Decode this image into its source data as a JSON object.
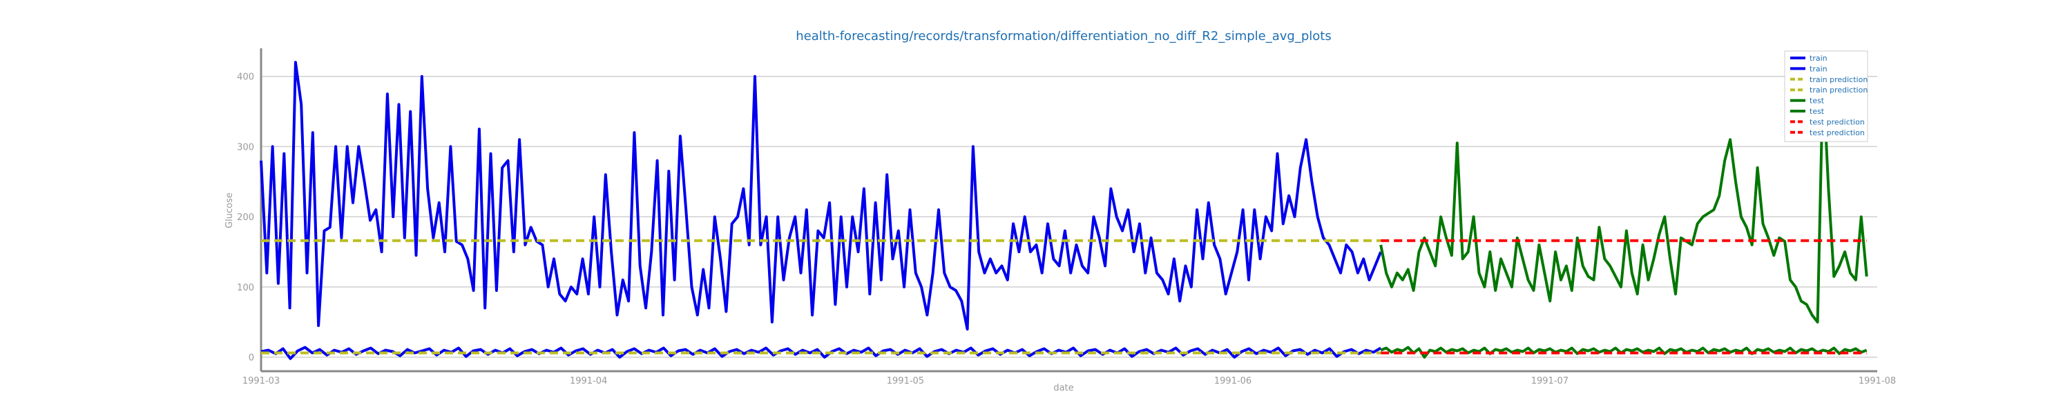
{
  "chart_data": {
    "type": "line",
    "title": "health-forecasting/records/transformation/differentiation_no_diff_R2_simple_avg_plots",
    "xlabel": "date",
    "ylabel": "Glucose",
    "x_start": "1991-03-01",
    "x_end": "1991-08-01",
    "x_ticks": [
      "1991-03",
      "1991-04",
      "1991-05",
      "1991-06",
      "1991-07",
      "1991-08"
    ],
    "y_ticks": [
      0,
      100,
      200,
      300,
      400
    ],
    "ylim": [
      -20,
      440
    ],
    "grid": "horizontal",
    "legend_position": "top-right",
    "series": [
      {
        "name": "train",
        "color": "#0000ee",
        "style": "solid",
        "x_start": "1991-03-01",
        "x_end": "1991-06-15",
        "values": [
          280,
          120,
          300,
          105,
          290,
          70,
          420,
          360,
          120,
          320,
          45,
          180,
          185,
          300,
          170,
          300,
          220,
          300,
          250,
          195,
          210,
          150,
          375,
          200,
          360,
          170,
          350,
          145,
          400,
          240,
          170,
          220,
          150,
          300,
          165,
          160,
          140,
          95,
          325,
          70,
          290,
          95,
          270,
          280,
          150,
          310,
          160,
          185,
          165,
          160,
          100,
          140,
          90,
          80,
          100,
          90,
          140,
          90,
          200,
          100,
          260,
          150,
          60,
          110,
          80,
          320,
          130,
          70,
          150,
          280,
          60,
          265,
          110,
          315,
          210,
          100,
          60,
          125,
          70,
          200,
          140,
          65,
          190,
          200,
          240,
          160,
          400,
          160,
          200,
          50,
          200,
          110,
          170,
          200,
          120,
          210,
          60,
          180,
          170,
          220,
          75,
          200,
          100,
          200,
          150,
          240,
          90,
          220,
          110,
          260,
          140,
          180,
          100,
          210,
          120,
          100,
          60,
          120,
          210,
          120,
          100,
          95,
          80,
          40,
          300,
          150,
          120,
          140,
          120,
          130,
          110,
          190,
          150,
          200,
          150,
          160,
          120,
          190,
          140,
          130,
          180,
          120,
          160,
          130,
          120,
          200,
          170,
          130,
          240,
          200,
          180,
          210,
          150,
          190,
          120,
          170,
          120,
          110,
          90,
          140,
          80,
          130,
          100,
          210,
          140,
          220,
          160,
          140,
          90,
          120,
          150,
          210,
          110,
          210,
          140,
          200,
          180,
          290,
          190,
          230,
          200,
          270,
          310,
          250,
          200,
          170,
          160,
          140,
          120,
          160,
          150,
          120,
          140,
          110,
          130,
          150
        ]
      },
      {
        "name": "train",
        "color": "#0000ee",
        "style": "solid",
        "x_start": "1991-03-01",
        "x_end": "1991-06-15",
        "values": [
          8,
          10,
          5,
          12,
          -2,
          9,
          14,
          6,
          11,
          3,
          10,
          7,
          12,
          4,
          9,
          13,
          5,
          10,
          8,
          2,
          11,
          6,
          9,
          12,
          3,
          10,
          7,
          13,
          1,
          9,
          11,
          4,
          10,
          6,
          12,
          2,
          8,
          11,
          5,
          10,
          7,
          13,
          3,
          9,
          12,
          4,
          10,
          6,
          11,
          0,
          8,
          12,
          5,
          10,
          7,
          13,
          2,
          9,
          11,
          4,
          10,
          6,
          12,
          1,
          8,
          11,
          5,
          10,
          7,
          13,
          3,
          9,
          12,
          4,
          10,
          6,
          11,
          0,
          8,
          12,
          5,
          10,
          7,
          13,
          2,
          9,
          11,
          4,
          10,
          6,
          12,
          1,
          8,
          11,
          5,
          10,
          7,
          13,
          3,
          9,
          12,
          4,
          10,
          6,
          11,
          2,
          8,
          12,
          5,
          10,
          7,
          13,
          2,
          9,
          11,
          4,
          10,
          6,
          12,
          1,
          8,
          11,
          5,
          10,
          7,
          13,
          3,
          9,
          12,
          4,
          10,
          6,
          11,
          0,
          8,
          12,
          5,
          10,
          7,
          13,
          2,
          9,
          11,
          4,
          10,
          6,
          12,
          1,
          8,
          11,
          5,
          10,
          7,
          13
        ]
      },
      {
        "name": "train prediction",
        "color": "#bcbd22",
        "style": "dashed",
        "x_start": "1991-03-01",
        "x_end": "1991-06-15",
        "values": [
          166,
          166
        ]
      },
      {
        "name": "train prediction",
        "color": "#bcbd22",
        "style": "dashed",
        "x_start": "1991-03-01",
        "x_end": "1991-06-15",
        "values": [
          6,
          6
        ]
      },
      {
        "name": "test",
        "color": "#007700",
        "style": "solid",
        "x_start": "1991-06-15",
        "x_end": "1991-07-31",
        "values": [
          160,
          120,
          100,
          120,
          110,
          125,
          95,
          150,
          170,
          150,
          130,
          200,
          170,
          145,
          305,
          140,
          150,
          200,
          120,
          100,
          150,
          95,
          140,
          120,
          100,
          170,
          140,
          110,
          95,
          160,
          120,
          80,
          150,
          110,
          130,
          95,
          170,
          130,
          115,
          110,
          185,
          140,
          130,
          115,
          100,
          180,
          120,
          90,
          160,
          110,
          140,
          175,
          200,
          140,
          90,
          170,
          165,
          160,
          190,
          200,
          205,
          210,
          230,
          280,
          310,
          250,
          200,
          185,
          160,
          270,
          190,
          170,
          145,
          170,
          165,
          110,
          100,
          80,
          75,
          60,
          50,
          400,
          240,
          115,
          130,
          150,
          120,
          110,
          200,
          115
        ]
      },
      {
        "name": "test",
        "color": "#007700",
        "style": "solid",
        "x_start": "1991-06-15",
        "x_end": "1991-07-31",
        "values": [
          10,
          13,
          7,
          11,
          9,
          14,
          6,
          12,
          0,
          10,
          8,
          13,
          7,
          11,
          9,
          12,
          6,
          10,
          8,
          13,
          5,
          11,
          9,
          12,
          7,
          10,
          8,
          13,
          6,
          11,
          9,
          12,
          7,
          10,
          8,
          13,
          5,
          11,
          9,
          12,
          7,
          10,
          8,
          13,
          6,
          11,
          9,
          12,
          7,
          10,
          8,
          13,
          5,
          11,
          9,
          12,
          7,
          10,
          8,
          13,
          6,
          11,
          9,
          12,
          7,
          10,
          8,
          13,
          5,
          11,
          9,
          12,
          7,
          10,
          8,
          13,
          6,
          11,
          9,
          12,
          7,
          10,
          8,
          13,
          5,
          11,
          9,
          12,
          7,
          10
        ]
      },
      {
        "name": "test prediction",
        "color": "#ff0000",
        "style": "dashed",
        "x_start": "1991-06-15",
        "x_end": "1991-07-31",
        "values": [
          166,
          166
        ]
      },
      {
        "name": "test prediction",
        "color": "#ff0000",
        "style": "dashed",
        "x_start": "1991-06-15",
        "x_end": "1991-07-31",
        "values": [
          6,
          6
        ]
      }
    ]
  }
}
